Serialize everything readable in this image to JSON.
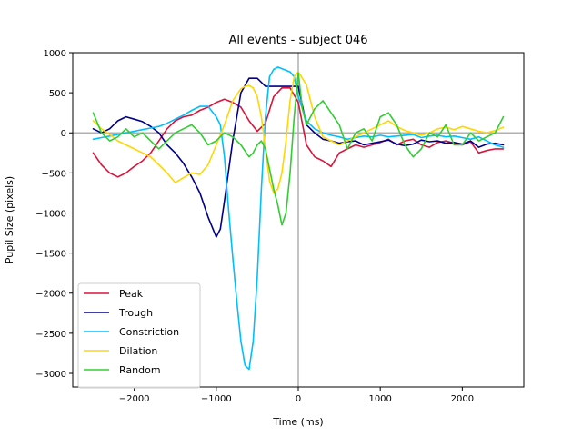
{
  "chart_data": {
    "type": "line",
    "title": "All events - subject 046",
    "xlabel": "Time (ms)",
    "ylabel": "Pupil Size (pixels)",
    "xlim": [
      -2750,
      2750
    ],
    "ylim": [
      -3170,
      1000
    ],
    "xticks": [
      -2000,
      -1000,
      0,
      1000,
      2000
    ],
    "xtick_labels": [
      "−2000",
      "−1000",
      "0",
      "1000",
      "2000"
    ],
    "yticks": [
      1000,
      500,
      0,
      -500,
      -1000,
      -1500,
      -2000,
      -2500,
      -3000
    ],
    "ytick_labels": [
      "1000",
      "500",
      "0",
      "−500",
      "−1000",
      "−1500",
      "−2000",
      "−2500",
      "−3000"
    ],
    "reference_lines": {
      "horizontal_y": 0,
      "vertical_x": 0
    },
    "grid": false,
    "legend_position": "lower-left",
    "series": [
      {
        "name": "Peak",
        "color": "#dc143c",
        "x": [
          -2500,
          -2400,
          -2300,
          -2200,
          -2100,
          -2000,
          -1900,
          -1800,
          -1700,
          -1600,
          -1500,
          -1400,
          -1300,
          -1200,
          -1100,
          -1000,
          -900,
          -800,
          -700,
          -600,
          -500,
          -400,
          -300,
          -200,
          -100,
          0,
          100,
          200,
          300,
          400,
          500,
          600,
          700,
          800,
          900,
          1000,
          1100,
          1200,
          1300,
          1400,
          1500,
          1600,
          1700,
          1800,
          1900,
          2000,
          2100,
          2200,
          2300,
          2400,
          2500
        ],
        "y": [
          -250,
          -400,
          -500,
          -550,
          -500,
          -420,
          -350,
          -250,
          -100,
          50,
          150,
          200,
          220,
          280,
          320,
          380,
          420,
          380,
          320,
          150,
          20,
          120,
          450,
          560,
          560,
          380,
          -150,
          -300,
          -350,
          -420,
          -250,
          -200,
          -150,
          -180,
          -150,
          -120,
          -80,
          -150,
          -100,
          -80,
          -150,
          -180,
          -120,
          -100,
          -130,
          -150,
          -110,
          -250,
          -220,
          -200,
          -200
        ]
      },
      {
        "name": "Trough",
        "color": "#00008b",
        "x": [
          -2500,
          -2400,
          -2300,
          -2200,
          -2100,
          -2000,
          -1900,
          -1800,
          -1700,
          -1600,
          -1500,
          -1400,
          -1300,
          -1200,
          -1100,
          -1000,
          -950,
          -900,
          -800,
          -700,
          -600,
          -500,
          -400,
          -300,
          -200,
          -100,
          0,
          100,
          200,
          300,
          400,
          500,
          600,
          700,
          800,
          900,
          1000,
          1100,
          1200,
          1300,
          1400,
          1500,
          1600,
          1700,
          1800,
          1900,
          2000,
          2100,
          2200,
          2300,
          2400,
          2500
        ],
        "y": [
          50,
          0,
          50,
          150,
          200,
          170,
          140,
          80,
          0,
          -150,
          -250,
          -380,
          -550,
          -750,
          -1050,
          -1300,
          -1200,
          -850,
          -100,
          500,
          680,
          680,
          580,
          580,
          580,
          580,
          580,
          100,
          0,
          -80,
          -100,
          -130,
          -110,
          -100,
          -150,
          -130,
          -110,
          -90,
          -140,
          -160,
          -140,
          -90,
          -110,
          -100,
          -130,
          -120,
          -140,
          -100,
          -180,
          -140,
          -130,
          -150
        ]
      },
      {
        "name": "Constriction",
        "color": "#00bfff",
        "x": [
          -2500,
          -2400,
          -2300,
          -2200,
          -2100,
          -2000,
          -1900,
          -1800,
          -1700,
          -1600,
          -1500,
          -1400,
          -1300,
          -1200,
          -1100,
          -1000,
          -950,
          -900,
          -850,
          -800,
          -750,
          -700,
          -650,
          -600,
          -550,
          -500,
          -450,
          -400,
          -350,
          -300,
          -250,
          -200,
          -150,
          -100,
          -50,
          0,
          100,
          200,
          300,
          400,
          500,
          600,
          700,
          800,
          900,
          1000,
          1100,
          1200,
          1300,
          1400,
          1500,
          1600,
          1700,
          1800,
          1900,
          2000,
          2100,
          2200,
          2300,
          2400,
          2500
        ],
        "y": [
          -80,
          -60,
          -40,
          -20,
          0,
          20,
          40,
          60,
          80,
          120,
          170,
          220,
          280,
          330,
          330,
          200,
          100,
          -300,
          -950,
          -1550,
          -2100,
          -2600,
          -2900,
          -2950,
          -2600,
          -1800,
          -700,
          200,
          700,
          790,
          820,
          800,
          780,
          760,
          700,
          450,
          150,
          50,
          0,
          -30,
          -50,
          -80,
          -60,
          -40,
          -50,
          -30,
          -50,
          -40,
          -30,
          -20,
          -60,
          -40,
          -30,
          -50,
          -40,
          -60,
          -80,
          -50,
          -100,
          -150,
          -180
        ]
      },
      {
        "name": "Dilation",
        "color": "#ffd700",
        "x": [
          -2500,
          -2400,
          -2300,
          -2200,
          -2100,
          -2000,
          -1900,
          -1800,
          -1700,
          -1600,
          -1500,
          -1400,
          -1300,
          -1200,
          -1100,
          -1000,
          -900,
          -800,
          -700,
          -650,
          -600,
          -550,
          -500,
          -450,
          -400,
          -350,
          -300,
          -250,
          -200,
          -150,
          -100,
          -50,
          0,
          100,
          200,
          300,
          400,
          500,
          600,
          700,
          800,
          900,
          1000,
          1100,
          1200,
          1300,
          1400,
          1500,
          1600,
          1700,
          1800,
          1900,
          2000,
          2100,
          2200,
          2300,
          2400,
          2500
        ],
        "y": [
          150,
          50,
          -20,
          -100,
          -150,
          -200,
          -250,
          -300,
          -400,
          -500,
          -620,
          -560,
          -500,
          -520,
          -400,
          -150,
          100,
          400,
          550,
          580,
          590,
          560,
          450,
          200,
          -200,
          -600,
          -750,
          -700,
          -500,
          -100,
          400,
          700,
          760,
          600,
          200,
          -50,
          -100,
          -150,
          -100,
          -50,
          0,
          50,
          100,
          150,
          80,
          30,
          0,
          -30,
          0,
          50,
          70,
          40,
          80,
          50,
          20,
          0,
          30,
          70
        ]
      },
      {
        "name": "Random",
        "color": "#32cd32",
        "x": [
          -2500,
          -2400,
          -2300,
          -2200,
          -2100,
          -2000,
          -1900,
          -1800,
          -1700,
          -1600,
          -1500,
          -1400,
          -1300,
          -1200,
          -1100,
          -1000,
          -900,
          -800,
          -700,
          -600,
          -550,
          -500,
          -450,
          -400,
          -350,
          -300,
          -250,
          -200,
          -150,
          -100,
          -50,
          0,
          50,
          100,
          200,
          300,
          400,
          500,
          600,
          700,
          800,
          900,
          1000,
          1100,
          1200,
          1300,
          1400,
          1500,
          1600,
          1700,
          1800,
          1900,
          2000,
          2100,
          2200,
          2300,
          2400,
          2500
        ],
        "y": [
          250,
          0,
          -100,
          -50,
          50,
          -50,
          0,
          -100,
          -200,
          -100,
          0,
          50,
          100,
          0,
          -150,
          -100,
          0,
          -50,
          -150,
          -300,
          -250,
          -150,
          -100,
          -200,
          -450,
          -700,
          -900,
          -1150,
          -1000,
          -500,
          200,
          750,
          300,
          100,
          300,
          400,
          250,
          100,
          -200,
          0,
          50,
          -100,
          200,
          250,
          100,
          -150,
          -300,
          -200,
          0,
          -50,
          100,
          -150,
          -150,
          0,
          -100,
          -50,
          0,
          200
        ]
      }
    ]
  }
}
